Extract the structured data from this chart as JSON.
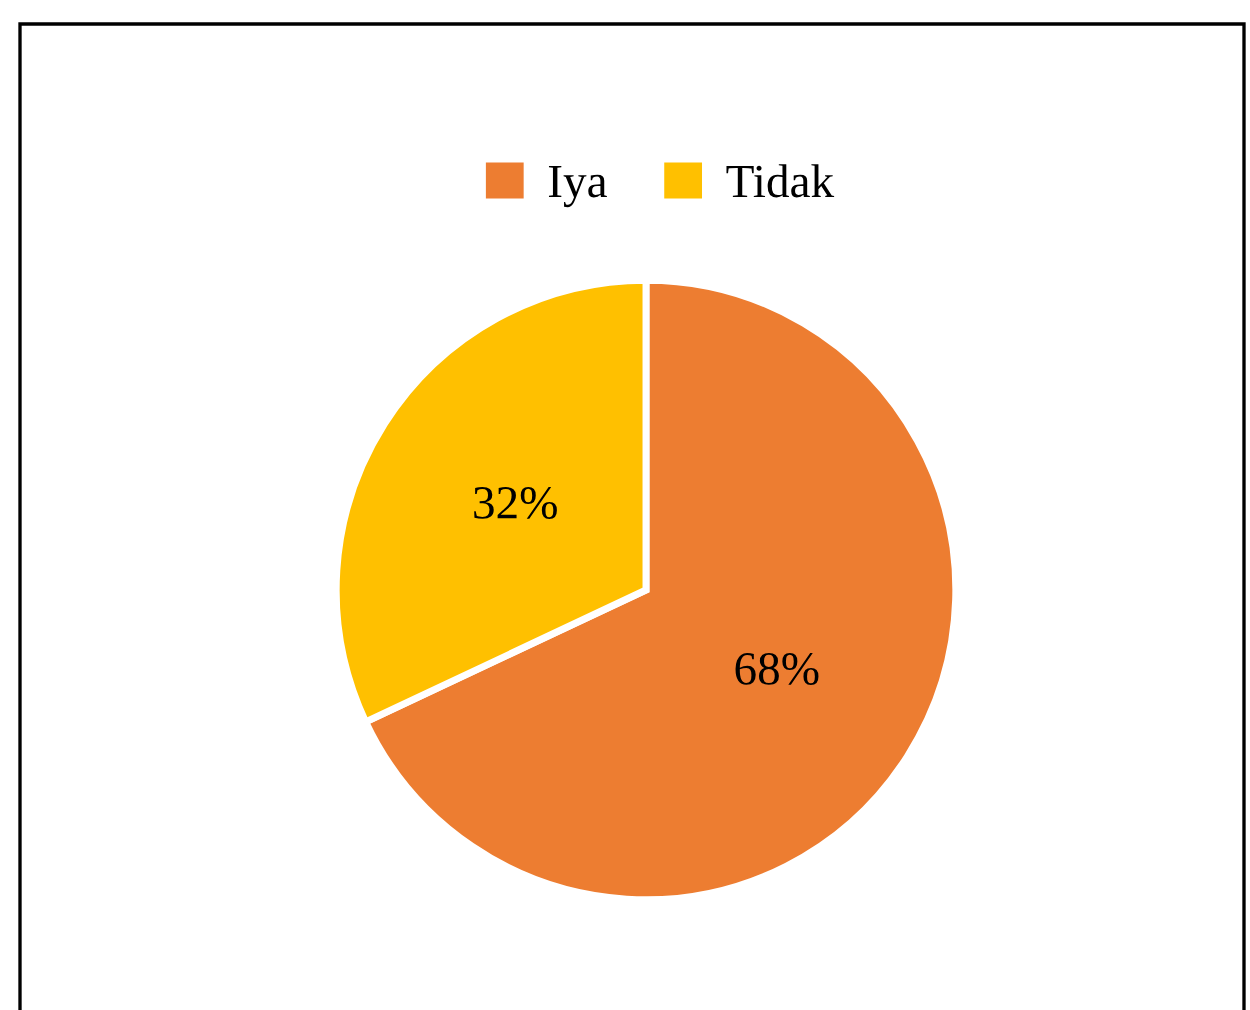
{
  "chart_data": {
    "type": "pie",
    "categories": [
      "Iya",
      "Tidak"
    ],
    "values": [
      68,
      32
    ],
    "colors": [
      "#ed7d31",
      "#ffc000"
    ],
    "value_labels": [
      "68%",
      "32%"
    ],
    "legend": "top"
  }
}
